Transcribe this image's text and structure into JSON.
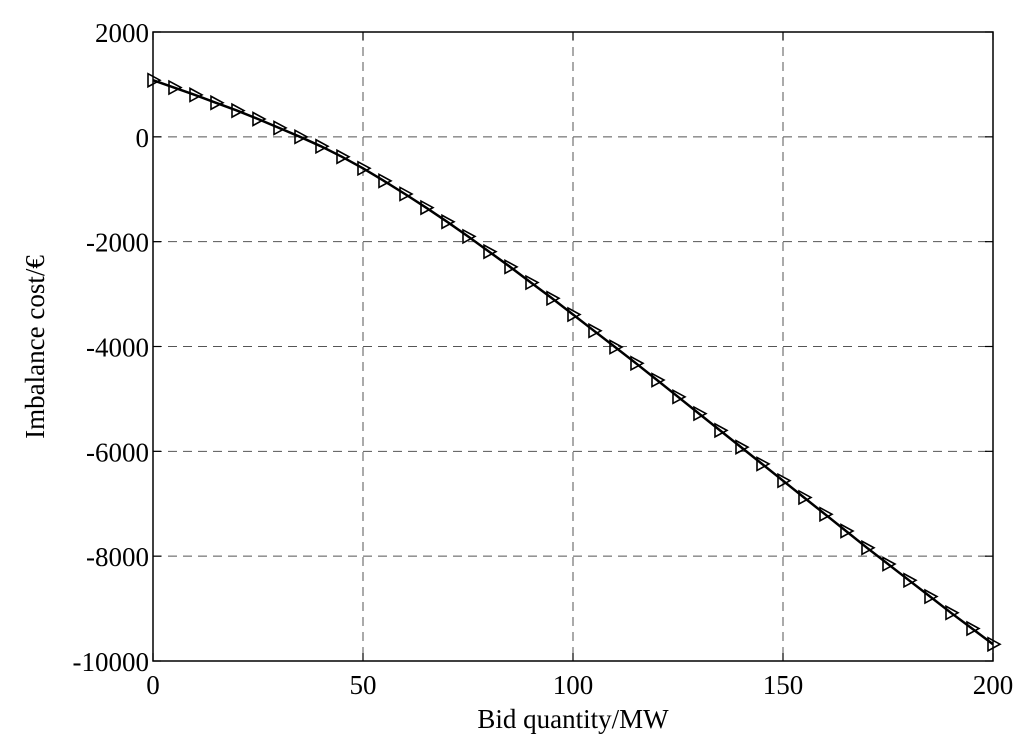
{
  "chart_data": {
    "type": "line",
    "xlabel": "Bid quantity/MW",
    "ylabel": "Imbalance cost/€",
    "xlim": [
      0,
      200
    ],
    "ylim": [
      -10000,
      2000
    ],
    "xticks": [
      0,
      50,
      100,
      150,
      200
    ],
    "yticks": [
      -10000,
      -8000,
      -6000,
      -4000,
      -2000,
      0,
      2000
    ],
    "grid": true,
    "series": [
      {
        "marker": "triangle-right",
        "color": "#000000",
        "x": [
          0,
          5,
          10,
          15,
          20,
          25,
          30,
          35,
          40,
          45,
          50,
          55,
          60,
          65,
          70,
          75,
          80,
          85,
          90,
          95,
          100,
          105,
          110,
          115,
          120,
          125,
          130,
          135,
          140,
          145,
          150,
          155,
          160,
          165,
          170,
          175,
          180,
          185,
          190,
          195,
          200
        ],
        "y": [
          1080,
          940,
          800,
          650,
          500,
          340,
          170,
          0,
          -180,
          -380,
          -600,
          -840,
          -1090,
          -1350,
          -1620,
          -1900,
          -2190,
          -2480,
          -2780,
          -3080,
          -3390,
          -3700,
          -4010,
          -4320,
          -4640,
          -4960,
          -5280,
          -5600,
          -5920,
          -6240,
          -6560,
          -6880,
          -7200,
          -7520,
          -7840,
          -8150,
          -8460,
          -8770,
          -9080,
          -9380,
          -9680
        ]
      }
    ]
  }
}
